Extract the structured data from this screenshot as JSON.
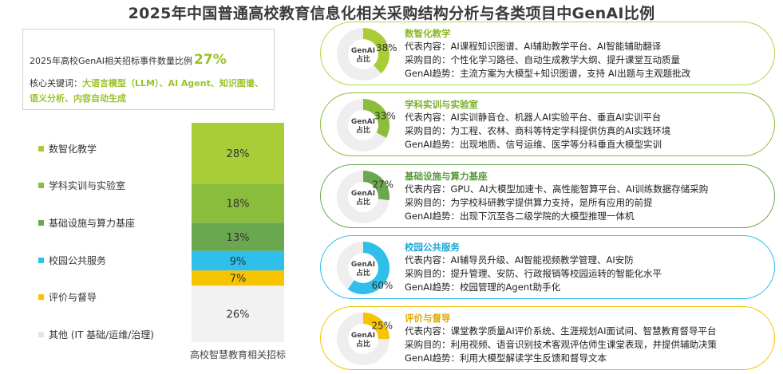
{
  "title": "2025年中国普通高校教育信息化相关采购结构分析与各类项目中GenAI比例",
  "summary": {
    "line1": "2025年高校GenAI相关招标事件数量比例",
    "percent": "27%",
    "keywords_label": "核心关键词：",
    "keywords": "大语言模型（LLM）、AI Agent、知识图谱、语义分析、内容自动生成"
  },
  "colors": {
    "green1": "#a9cd36",
    "green2": "#8abd3c",
    "green3": "#6aa84f",
    "blue": "#2ec0eb",
    "yellow": "#f6c400",
    "gray": "#f2f2f2",
    "legend_gray": "#e4e4e4"
  },
  "chart_data": {
    "type": "bar",
    "stacked": true,
    "xlabel": "高校智慧教育相关招标",
    "categories": [
      "高校智慧教育相关招标"
    ],
    "series": [
      {
        "name": "其他 (IT 基础/运维/治理)",
        "values": [
          26
        ],
        "label": "26%",
        "color": "#f2f2f2",
        "legend_color": "#e4e4e4",
        "text_color": "#333333"
      },
      {
        "name": "评价与督导",
        "values": [
          7
        ],
        "label": "7%",
        "color": "#f6c400",
        "legend_color": "#f6c400",
        "text_color": "#333333"
      },
      {
        "name": "校园公共服务",
        "values": [
          9
        ],
        "label": "9%",
        "color": "#2ec0eb",
        "legend_color": "#2ec0eb",
        "text_color": "#333333"
      },
      {
        "name": "基础设施与算力基座",
        "values": [
          13
        ],
        "label": "13%",
        "color": "#6aa84f",
        "legend_color": "#6aa84f",
        "text_color": "#333333"
      },
      {
        "name": "学科实训与实验室",
        "values": [
          18
        ],
        "label": "18%",
        "color": "#8abd3c",
        "legend_color": "#8abd3c",
        "text_color": "#333333"
      },
      {
        "name": "数智化教学",
        "values": [
          28
        ],
        "label": "28%",
        "color": "#a9cd36",
        "legend_color": "#a9cd36",
        "text_color": "#333333"
      }
    ],
    "pies": [
      {
        "name": "数智化教学",
        "genai_share": 38,
        "label": "38%"
      },
      {
        "name": "学科实训与实验室",
        "genai_share": 33,
        "label": "33%"
      },
      {
        "name": "基础设施与算力基座",
        "genai_share": 27,
        "label": "27%"
      },
      {
        "name": "校园公共服务",
        "genai_share": 60,
        "label": "60%"
      },
      {
        "name": "评价与督导",
        "genai_share": 25,
        "label": "25%"
      }
    ],
    "ylim": [
      0,
      100
    ]
  },
  "cards": [
    {
      "title": "数智化教学",
      "pie_center": "GenAI\n占比",
      "pct": "38%",
      "color": "#a9cd36",
      "border": "#b5d44a",
      "title_color": "#8ab82a",
      "line1_label": "代表内容：",
      "line1": "AI课程知识图谱、AI辅助教学平台、AI智能辅助翻译",
      "line2_label": "采购目的：",
      "line2": "个性化学习路径、自动生成教学大纲、提升课堂互动质量",
      "line3_label": "GenAI趋势：",
      "line3": "主流方案为大模型+知识图谱，支持 AI出题与主观题批改"
    },
    {
      "title": "学科实训与实验室",
      "pie_center": "GenAI\n占比",
      "pct": "33%",
      "color": "#8abd3c",
      "border": "#8abd3c",
      "title_color": "#7aad2c",
      "line1_label": "代表内容：",
      "line1": "AI实训静音仓、机器人AI实验平台、垂直AI实训平台",
      "line2_label": "采购目的：",
      "line2": "为工程、农林、商科等特定学科提供仿真的AI实践环境",
      "line3_label": "GenAI趋势：",
      "line3": "出现地质、信号运维、医学等分科垂直大模型实训"
    },
    {
      "title": "基础设施与算力基座",
      "pie_center": "GenAI\n占比",
      "pct": "27%",
      "color": "#6aa84f",
      "border": "#6aa84f",
      "title_color": "#5a9a3f",
      "line1_label": "代表内容：",
      "line1": "GPU、AI大模型加速卡、高性能智算平台、AI训练数据存储采购",
      "line2_label": "采购目的：",
      "line2": "为学校科研教学提供算力支持，是所有应用的前提",
      "line3_label": "GenAI趋势：",
      "line3": "出现下沉至各二级学院的大模型推理一体机"
    },
    {
      "title": "校园公共服务",
      "pie_center": "GenAI\n占比",
      "pct": "60%",
      "color": "#2ec0eb",
      "border": "#2ec0eb",
      "title_color": "#1aa8d6",
      "line1_label": "代表内容：",
      "line1": "AI辅导员升级、AI智能视频教学管理、AI安防",
      "line2_label": "采购目的：",
      "line2": "提升管理、安防、行政报销等校园运转的智能化水平",
      "line3_label": "GenAI趋势：",
      "line3": "校园管理的Agent助手化"
    },
    {
      "title": "评价与督导",
      "pie_center": "GenAI\n占比",
      "pct": "25%",
      "color": "#f6c400",
      "border": "#f6c400",
      "title_color": "#e0a800",
      "line1_label": "代表内容：",
      "line1": "课堂教学质量AI评价系统、生涯规划AI面试间、智慧教育督导平台",
      "line2_label": "采购目的：",
      "line2": "利用视频、语音识别技术客观评估师生课堂表现，并提供辅助决策",
      "line3_label": "GenAI趋势：",
      "line3": "利用大模型解读学生反馈和督导文本"
    }
  ]
}
